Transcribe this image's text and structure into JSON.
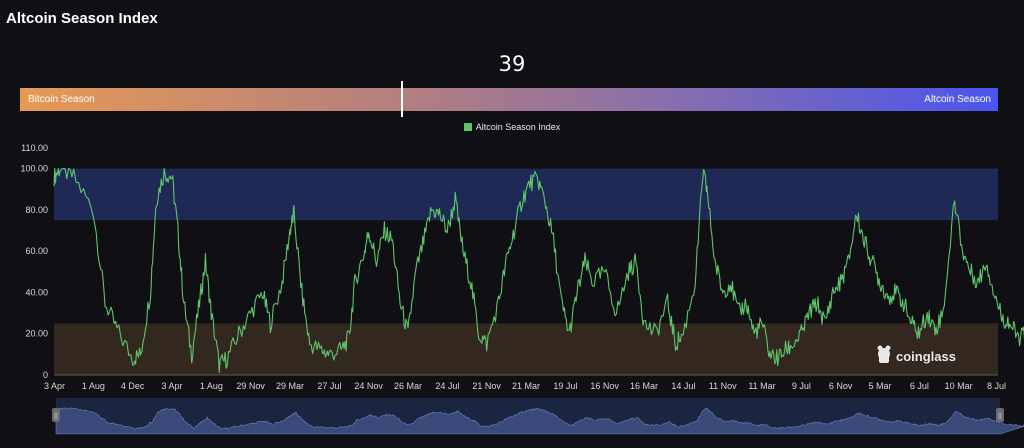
{
  "page": {
    "title": "Altcoin Season Index"
  },
  "gauge": {
    "value": "39",
    "left_label": "Bitcoin Season",
    "right_label": "Altcoin Season"
  },
  "watermark": "coinglass",
  "colors": {
    "line": "#5fc46b",
    "altcoin_zone": "#1e2a55",
    "bitcoin_zone": "#33281f",
    "background": "#101014"
  },
  "chart_data": {
    "type": "line",
    "title": "",
    "xlabel": "",
    "ylabel": "",
    "ylim": [
      0,
      110
    ],
    "y_ticks": [
      "0",
      "20.00",
      "40.00",
      "60.00",
      "80.00",
      "100.00",
      "110.00"
    ],
    "x_ticks": [
      "3 Apr",
      "1 Aug",
      "4 Dec",
      "3 Apr",
      "1 Aug",
      "29 Nov",
      "29 Mar",
      "27 Jul",
      "24 Nov",
      "26 Mar",
      "24 Jul",
      "21 Nov",
      "21 Mar",
      "19 Jul",
      "16 Nov",
      "16 Mar",
      "14 Jul",
      "11 Nov",
      "11 Mar",
      "9 Jul",
      "6 Nov",
      "5 Mar",
      "6 Jul",
      "10 Mar",
      "8 Jul"
    ],
    "bands": [
      {
        "name": "altcoin-season-zone",
        "from": 75,
        "to": 100
      },
      {
        "name": "bitcoin-season-zone",
        "from": 0,
        "to": 25
      }
    ],
    "legend": {
      "position": "top-center",
      "entries": [
        "Altcoin Season Index"
      ]
    },
    "series": [
      {
        "name": "Altcoin Season Index",
        "anchors": [
          [
            0,
            96
          ],
          [
            0.15,
            100
          ],
          [
            0.5,
            96
          ],
          [
            1.0,
            80
          ],
          [
            1.3,
            35
          ],
          [
            1.6,
            22
          ],
          [
            2.0,
            8
          ],
          [
            2.2,
            10
          ],
          [
            2.45,
            40
          ],
          [
            2.6,
            85
          ],
          [
            2.8,
            98
          ],
          [
            3.0,
            96
          ],
          [
            3.15,
            70
          ],
          [
            3.3,
            35
          ],
          [
            3.5,
            10
          ],
          [
            3.7,
            35
          ],
          [
            3.85,
            55
          ],
          [
            4.0,
            30
          ],
          [
            4.2,
            5
          ],
          [
            4.4,
            8
          ],
          [
            4.7,
            20
          ],
          [
            5.0,
            30
          ],
          [
            5.3,
            40
          ],
          [
            5.5,
            25
          ],
          [
            5.8,
            45
          ],
          [
            6.0,
            70
          ],
          [
            6.1,
            78
          ],
          [
            6.3,
            40
          ],
          [
            6.5,
            15
          ],
          [
            6.8,
            12
          ],
          [
            7.0,
            10
          ],
          [
            7.3,
            12
          ],
          [
            7.5,
            18
          ],
          [
            7.65,
            45
          ],
          [
            7.9,
            60
          ],
          [
            8.0,
            70
          ],
          [
            8.2,
            55
          ],
          [
            8.4,
            70
          ],
          [
            8.6,
            65
          ],
          [
            8.8,
            35
          ],
          [
            9.0,
            20
          ],
          [
            9.2,
            50
          ],
          [
            9.4,
            65
          ],
          [
            9.6,
            80
          ],
          [
            9.8,
            78
          ],
          [
            10.0,
            70
          ],
          [
            10.2,
            85
          ],
          [
            10.4,
            60
          ],
          [
            10.6,
            45
          ],
          [
            10.8,
            20
          ],
          [
            11.0,
            15
          ],
          [
            11.3,
            35
          ],
          [
            11.5,
            55
          ],
          [
            11.7,
            70
          ],
          [
            11.9,
            85
          ],
          [
            12.1,
            93
          ],
          [
            12.3,
            95
          ],
          [
            12.5,
            83
          ],
          [
            12.7,
            65
          ],
          [
            12.9,
            35
          ],
          [
            13.1,
            20
          ],
          [
            13.3,
            40
          ],
          [
            13.5,
            55
          ],
          [
            13.7,
            45
          ],
          [
            14.0,
            50
          ],
          [
            14.3,
            30
          ],
          [
            14.6,
            50
          ],
          [
            14.8,
            55
          ],
          [
            15.0,
            25
          ],
          [
            15.3,
            20
          ],
          [
            15.6,
            35
          ],
          [
            15.8,
            15
          ],
          [
            16.0,
            20
          ],
          [
            16.3,
            45
          ],
          [
            16.5,
            98
          ],
          [
            16.6,
            90
          ],
          [
            16.8,
            55
          ],
          [
            17.0,
            40
          ],
          [
            17.2,
            45
          ],
          [
            17.4,
            30
          ],
          [
            17.6,
            35
          ],
          [
            17.8,
            20
          ],
          [
            18.0,
            25
          ],
          [
            18.2,
            10
          ],
          [
            18.4,
            8
          ],
          [
            18.6,
            12
          ],
          [
            18.8,
            15
          ],
          [
            19.0,
            20
          ],
          [
            19.2,
            30
          ],
          [
            19.4,
            35
          ],
          [
            19.6,
            25
          ],
          [
            19.8,
            40
          ],
          [
            20.0,
            45
          ],
          [
            20.2,
            55
          ],
          [
            20.4,
            78
          ],
          [
            20.6,
            65
          ],
          [
            20.8,
            55
          ],
          [
            21.0,
            45
          ],
          [
            21.2,
            38
          ],
          [
            21.4,
            40
          ],
          [
            21.6,
            35
          ],
          [
            21.8,
            25
          ],
          [
            22.0,
            20
          ],
          [
            22.2,
            30
          ],
          [
            22.4,
            22
          ],
          [
            22.6,
            30
          ],
          [
            22.9,
            85
          ],
          [
            23.1,
            60
          ],
          [
            23.3,
            50
          ],
          [
            23.5,
            45
          ],
          [
            23.7,
            55
          ],
          [
            23.9,
            40
          ],
          [
            24.1,
            28
          ],
          [
            24.3,
            25
          ],
          [
            24.5,
            18
          ],
          [
            24.7,
            20
          ],
          [
            24.85,
            25
          ],
          [
            25.0,
            38
          ]
        ]
      }
    ]
  },
  "navigator": {
    "left_handle": "||",
    "right_handle": "||"
  }
}
